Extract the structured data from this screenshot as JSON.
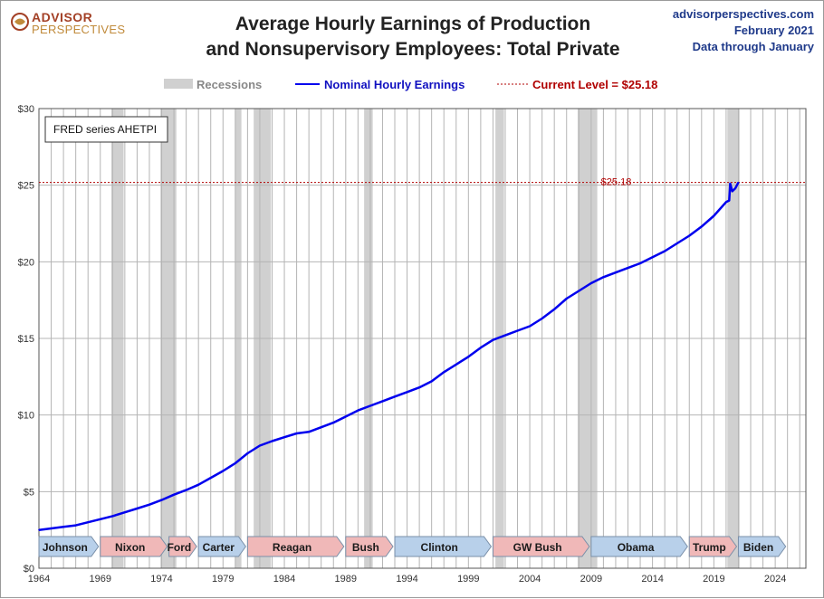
{
  "header": {
    "logo_line1": "ADVISOR",
    "logo_line2": "PERSPECTIVES",
    "title_line1": "Average Hourly Earnings of Production",
    "title_line2": "and Nonsupervisory Employees: Total Private",
    "source_site": "advisorperspectives.com",
    "source_date": "February 2021",
    "source_note": "Data through January"
  },
  "legend": {
    "recessions": "Recessions",
    "series": "Nominal Hourly Earnings",
    "current": "Current Level = $25.18"
  },
  "series_box": "FRED series AHETPI",
  "current_label": "$25.18",
  "colors": {
    "line": "#0000ee",
    "recession": "#d0d0d0",
    "current": "#b00000",
    "republican": "#f0b8b8",
    "democrat": "#b8d0ea"
  },
  "chart_data": {
    "type": "line",
    "title": "Average Hourly Earnings of Production and Nonsupervisory Employees: Total Private",
    "xlim": [
      1964,
      2026.5
    ],
    "ylim": [
      0,
      30
    ],
    "x_ticks": [
      1964,
      1969,
      1974,
      1979,
      1984,
      1989,
      1994,
      1999,
      2004,
      2009,
      2014,
      2019,
      2024
    ],
    "y_ticks": [
      {
        "v": 0,
        "label": "$0"
      },
      {
        "v": 5,
        "label": "$5"
      },
      {
        "v": 10,
        "label": "$10"
      },
      {
        "v": 15,
        "label": "$15"
      },
      {
        "v": 20,
        "label": "$20"
      },
      {
        "v": 25,
        "label": "$25"
      },
      {
        "v": 30,
        "label": "$30"
      }
    ],
    "grid": true,
    "legend_position": "top",
    "current_level": 25.18,
    "recessions": [
      [
        1969.9,
        1970.9
      ],
      [
        1973.9,
        1975.2
      ],
      [
        1980.0,
        1980.5
      ],
      [
        1981.5,
        1982.9
      ],
      [
        1990.5,
        1991.2
      ],
      [
        2001.2,
        2001.9
      ],
      [
        2007.9,
        2009.5
      ],
      [
        2020.1,
        2021.1
      ]
    ],
    "presidents": [
      {
        "name": "Johnson",
        "start": 1964.0,
        "end": 1969.0,
        "party": "D"
      },
      {
        "name": "Nixon",
        "start": 1969.0,
        "end": 1974.6,
        "party": "R"
      },
      {
        "name": "Ford",
        "start": 1974.6,
        "end": 1977.0,
        "party": "R"
      },
      {
        "name": "Carter",
        "start": 1977.0,
        "end": 1981.0,
        "party": "D"
      },
      {
        "name": "Reagan",
        "start": 1981.0,
        "end": 1989.0,
        "party": "R"
      },
      {
        "name": "Bush",
        "start": 1989.0,
        "end": 1993.0,
        "party": "R"
      },
      {
        "name": "Clinton",
        "start": 1993.0,
        "end": 2001.0,
        "party": "D"
      },
      {
        "name": "GW Bush",
        "start": 2001.0,
        "end": 2009.0,
        "party": "R"
      },
      {
        "name": "Obama",
        "start": 2009.0,
        "end": 2017.0,
        "party": "D"
      },
      {
        "name": "Trump",
        "start": 2017.0,
        "end": 2021.0,
        "party": "R"
      },
      {
        "name": "Biden",
        "start": 2021.0,
        "end": 2025.0,
        "party": "D"
      }
    ],
    "series": [
      {
        "name": "Nominal Hourly Earnings",
        "x": [
          1964,
          1965,
          1966,
          1967,
          1968,
          1969,
          1970,
          1971,
          1972,
          1973,
          1974,
          1975,
          1976,
          1977,
          1978,
          1979,
          1980,
          1981,
          1982,
          1983,
          1984,
          1985,
          1986,
          1987,
          1988,
          1989,
          1990,
          1991,
          1992,
          1993,
          1994,
          1995,
          1996,
          1997,
          1998,
          1999,
          2000,
          2001,
          2002,
          2003,
          2004,
          2005,
          2006,
          2007,
          2008,
          2009,
          2010,
          2011,
          2012,
          2013,
          2014,
          2015,
          2016,
          2017,
          2018,
          2019,
          2020.0,
          2020.25,
          2020.33,
          2020.5,
          2020.75,
          2021.0
        ],
        "values": [
          2.5,
          2.6,
          2.7,
          2.8,
          3.0,
          3.2,
          3.4,
          3.65,
          3.9,
          4.15,
          4.45,
          4.8,
          5.1,
          5.45,
          5.9,
          6.35,
          6.85,
          7.5,
          8.0,
          8.3,
          8.55,
          8.8,
          8.9,
          9.2,
          9.5,
          9.9,
          10.3,
          10.6,
          10.9,
          11.2,
          11.5,
          11.8,
          12.2,
          12.8,
          13.3,
          13.8,
          14.4,
          14.9,
          15.2,
          15.5,
          15.8,
          16.3,
          16.9,
          17.6,
          18.1,
          18.6,
          19.0,
          19.3,
          19.6,
          19.9,
          20.3,
          20.7,
          21.2,
          21.7,
          22.3,
          23.0,
          23.9,
          24.0,
          25.1,
          24.6,
          24.8,
          25.18
        ]
      }
    ]
  }
}
